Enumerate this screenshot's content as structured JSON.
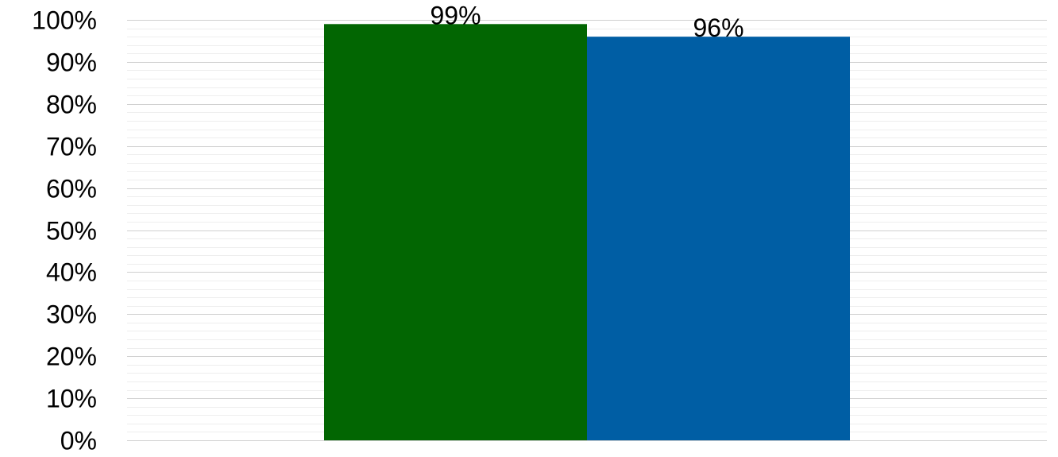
{
  "chart_data": {
    "type": "bar",
    "categories": [
      ""
    ],
    "series": [
      {
        "values": [
          99
        ],
        "color": "#026602"
      },
      {
        "values": [
          96
        ],
        "color": "#005ea4"
      }
    ],
    "data_labels": [
      "99%",
      "96%"
    ],
    "ylim": [
      0,
      100
    ],
    "y_ticks": [
      0,
      10,
      20,
      30,
      40,
      50,
      60,
      70,
      80,
      90,
      100
    ],
    "y_tick_labels": [
      "0%",
      "10%",
      "20%",
      "30%",
      "40%",
      "50%",
      "60%",
      "70%",
      "80%",
      "90%",
      "100%"
    ],
    "grid": true,
    "minor_grid": true,
    "legend": "none"
  }
}
